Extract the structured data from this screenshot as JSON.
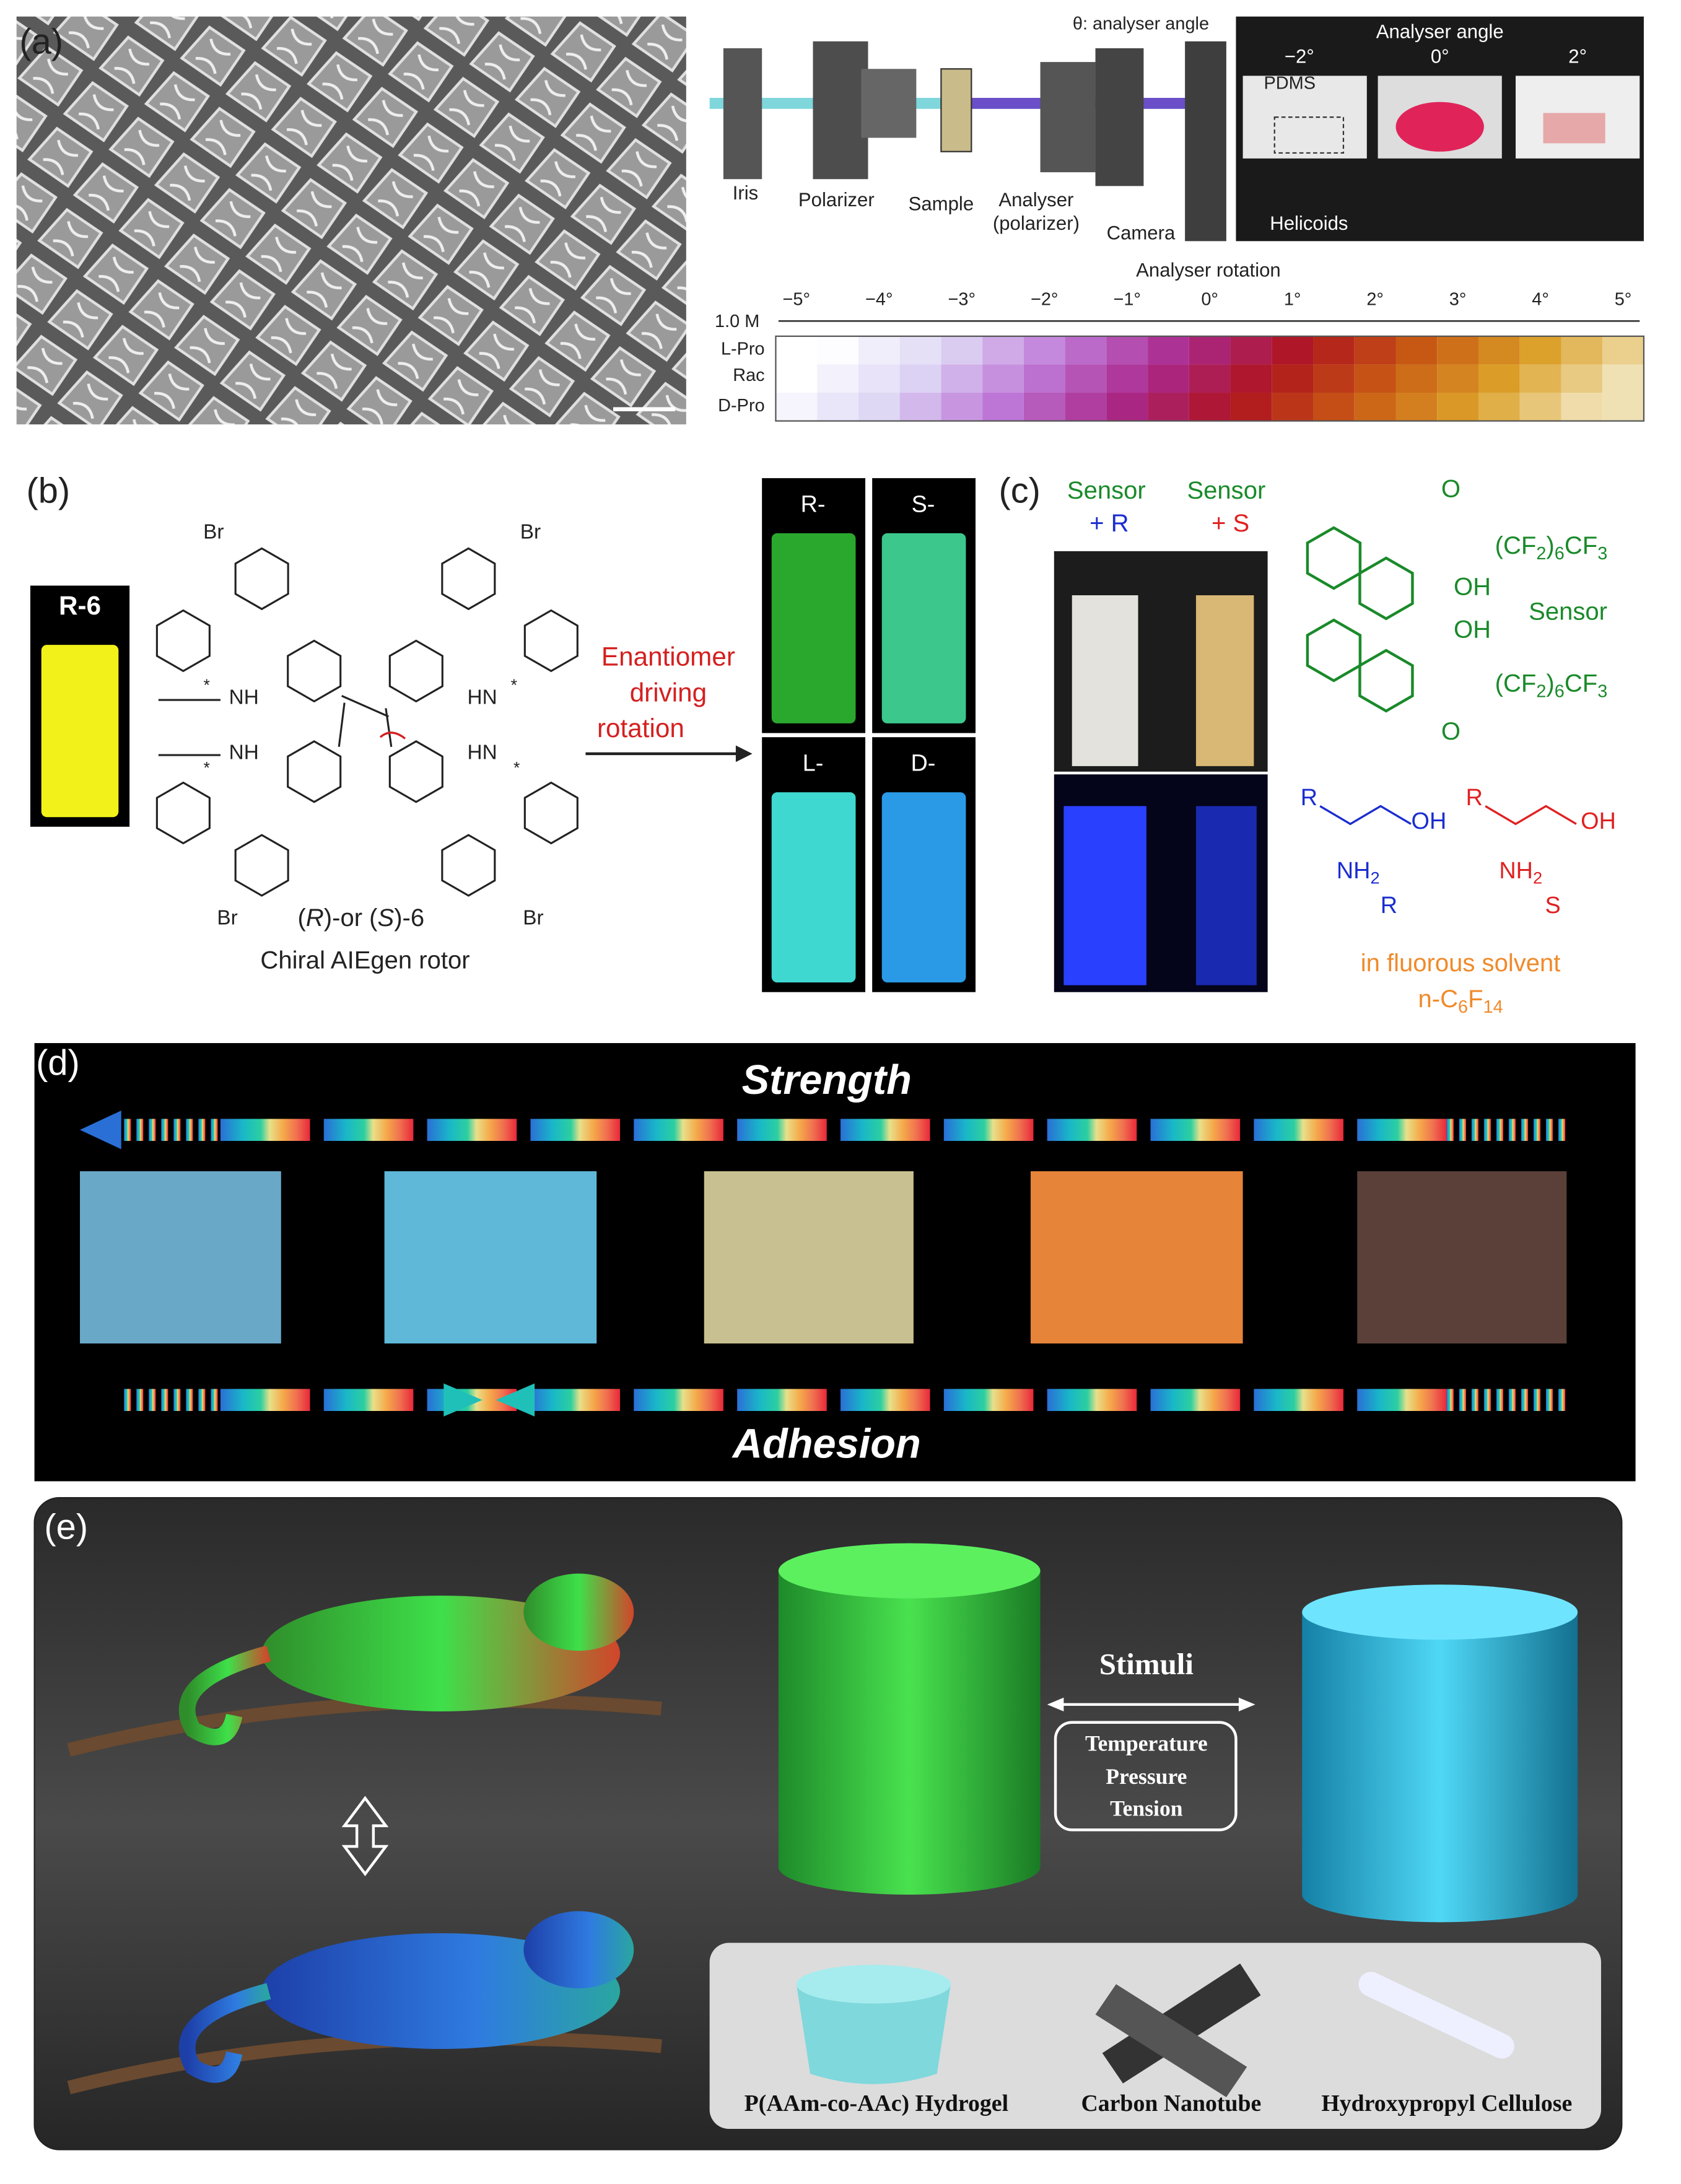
{
  "panel_labels": [
    "(a)",
    "(b)",
    "(c)",
    "(d)",
    "(e)"
  ],
  "a": {
    "setup": {
      "angle_label": "θ: analyser angle",
      "components": [
        [
          "Iris"
        ],
        [
          "Polarizer"
        ],
        [
          "Sample"
        ],
        [
          "Analyser",
          "(polarizer)"
        ],
        [
          "Camera"
        ]
      ]
    },
    "photo": {
      "title": "Analyser angle",
      "angles": [
        "−2°",
        "0°",
        "2°"
      ],
      "labels": [
        "PDMS",
        "Helicoids"
      ]
    },
    "rotation": {
      "title": "Analyser rotation",
      "ticks": [
        "−5°",
        "−4°",
        "−3°",
        "−2°",
        "−1°",
        "0°",
        "1°",
        "2°",
        "3°",
        "4°",
        "5°"
      ],
      "concentration": "1.0 M",
      "rows": [
        "L-Pro",
        "Rac",
        "D-Pro"
      ]
    }
  },
  "b": {
    "vial_label": "R-6",
    "br_labels": [
      "Br",
      "Br",
      "Br",
      "Br"
    ],
    "amine_labels": [
      "NH",
      "NH",
      "HN",
      "HN"
    ],
    "stars": [
      "*",
      "*",
      "*",
      "*"
    ],
    "compound": [
      "(",
      "R",
      ")-or (",
      "S",
      ")-6"
    ],
    "caption": "Chiral AIEgen rotor",
    "arrow_label": [
      "Enantiomer",
      "driving",
      "rotation"
    ],
    "vials": [
      "R-",
      "S-",
      "L-",
      "D-"
    ]
  },
  "c": {
    "columns": [
      [
        "Sensor",
        "+ R"
      ],
      [
        "Sensor",
        "+ S"
      ]
    ],
    "sensor": {
      "carbonyl": [
        "O",
        "O"
      ],
      "chains": [
        [
          "(CF",
          "2",
          ")",
          "6",
          "CF",
          "3"
        ],
        [
          "(CF",
          "2",
          ")",
          "6",
          "CF",
          "3"
        ]
      ],
      "hydroxyls": [
        "OH",
        "OH"
      ],
      "name": "Sensor"
    },
    "amines": [
      {
        "r": "R",
        "oh": "OH",
        "nh2": [
          "NH",
          "2"
        ],
        "config": "R"
      },
      {
        "r": "R",
        "oh": "OH",
        "nh2": [
          "NH",
          "2"
        ],
        "config": "S"
      }
    ],
    "solvent": {
      "line1": "in fluorous solvent",
      "formula": [
        "n-C",
        "6",
        "F",
        "14"
      ]
    }
  },
  "d": {
    "top": "Strength",
    "bottom": "Adhesion"
  },
  "e": {
    "stimuli": "Stimuli",
    "conditions": [
      "Temperature",
      "Pressure",
      "Tension"
    ],
    "materials": [
      "P(AAm-co-AAc) Hydrogel",
      "Carbon Nanotube",
      "Hydroxypropyl Cellulose"
    ]
  }
}
